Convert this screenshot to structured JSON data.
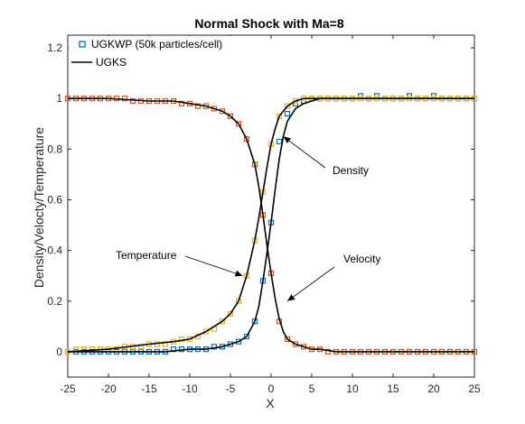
{
  "chart_data": {
    "type": "line",
    "title": "Normal Shock with Ma=8",
    "xlabel": "X",
    "ylabel": "Density/Velocty/Temperature",
    "xlim": [
      -25,
      25
    ],
    "ylim": [
      -0.1,
      1.25
    ],
    "xticks": [
      -25,
      -20,
      -15,
      -10,
      -5,
      0,
      5,
      10,
      15,
      20,
      25
    ],
    "yticks": [
      0,
      0.2,
      0.4,
      0.6,
      0.8,
      1,
      1.2
    ],
    "grid": false,
    "legend_position": "top-left",
    "legend": [
      {
        "label": "UGKWP (50k particles/cell)",
        "marker": "square",
        "color": "#0072bd"
      },
      {
        "label": "UGKS",
        "marker": "line",
        "color": "#000000"
      }
    ],
    "colors": {
      "density": "#0072bd",
      "velocity": "#d95319",
      "temperature": "#edb120",
      "ugks": "#000000"
    },
    "annotations": [
      {
        "text": "Density",
        "arrow_to": [
          1.5,
          0.85
        ]
      },
      {
        "text": "Velocity",
        "arrow_to": [
          2.0,
          0.2
        ]
      },
      {
        "text": "Temperature",
        "arrow_to": [
          -3.5,
          0.3
        ]
      }
    ],
    "series": [
      {
        "name": "Density",
        "kind": "UGKWP",
        "x": [
          -25,
          -24,
          -23,
          -22,
          -21,
          -20,
          -19,
          -18,
          -17,
          -16,
          -15,
          -14,
          -13,
          -12,
          -11,
          -10,
          -9,
          -8,
          -7,
          -6,
          -5,
          -4,
          -3,
          -2,
          -1,
          0,
          1,
          2,
          3,
          4,
          5,
          6,
          7,
          8,
          9,
          10,
          11,
          12,
          13,
          14,
          15,
          16,
          17,
          18,
          19,
          20,
          21,
          22,
          23,
          24,
          25
        ],
        "y": [
          0.0,
          0.0,
          0.0,
          0.0,
          0.0,
          0.0,
          0.0,
          0.0,
          0.0,
          0.0,
          0.0,
          0.0,
          0.0,
          0.01,
          0.01,
          0.01,
          0.01,
          0.01,
          0.02,
          0.02,
          0.03,
          0.04,
          0.06,
          0.12,
          0.28,
          0.51,
          0.83,
          0.94,
          0.98,
          0.99,
          1.0,
          1.0,
          1.0,
          1.0,
          1.0,
          1.0,
          1.01,
          1.0,
          1.01,
          1.0,
          1.0,
          1.0,
          1.01,
          1.0,
          1.0,
          1.01,
          1.0,
          1.0,
          1.0,
          1.0,
          1.0
        ]
      },
      {
        "name": "Velocity",
        "kind": "UGKWP",
        "x": [
          -25,
          -24,
          -23,
          -22,
          -21,
          -20,
          -19,
          -18,
          -17,
          -16,
          -15,
          -14,
          -13,
          -12,
          -11,
          -10,
          -9,
          -8,
          -7,
          -6,
          -5,
          -4,
          -3,
          -2,
          -1,
          0,
          1,
          2,
          3,
          4,
          5,
          6,
          7,
          8,
          9,
          10,
          11,
          12,
          13,
          14,
          15,
          16,
          17,
          18,
          19,
          20,
          21,
          22,
          23,
          24,
          25
        ],
        "y": [
          1.0,
          1.0,
          1.0,
          1.0,
          1.0,
          1.0,
          1.0,
          1.0,
          0.99,
          0.99,
          0.99,
          0.99,
          0.99,
          0.99,
          0.98,
          0.98,
          0.97,
          0.97,
          0.96,
          0.95,
          0.93,
          0.9,
          0.84,
          0.74,
          0.54,
          0.31,
          0.12,
          0.05,
          0.03,
          0.02,
          0.01,
          0.01,
          0.0,
          0.0,
          0.0,
          0.0,
          0.0,
          0.0,
          0.0,
          0.0,
          0.0,
          0.0,
          0.0,
          0.0,
          0.0,
          0.0,
          0.0,
          0.0,
          0.0,
          0.0,
          0.0
        ]
      },
      {
        "name": "Temperature",
        "kind": "UGKWP",
        "x": [
          -25,
          -24,
          -23,
          -22,
          -21,
          -20,
          -19,
          -18,
          -17,
          -16,
          -15,
          -14,
          -13,
          -12,
          -11,
          -10,
          -9,
          -8,
          -7,
          -6,
          -5,
          -4,
          -3,
          -2,
          -1,
          0,
          1,
          2,
          3,
          4,
          5,
          6,
          7,
          8,
          9,
          10,
          11,
          12,
          13,
          14,
          15,
          16,
          17,
          18,
          19,
          20,
          21,
          22,
          23,
          24,
          25
        ],
        "y": [
          0.0,
          0.01,
          0.01,
          0.01,
          0.01,
          0.01,
          0.01,
          0.02,
          0.02,
          0.02,
          0.03,
          0.03,
          0.03,
          0.04,
          0.05,
          0.05,
          0.06,
          0.08,
          0.09,
          0.12,
          0.15,
          0.2,
          0.3,
          0.44,
          0.63,
          0.82,
          0.93,
          0.97,
          0.99,
          1.0,
          1.0,
          1.0,
          1.0,
          1.0,
          1.0,
          1.0,
          1.0,
          1.0,
          1.0,
          1.0,
          1.0,
          1.0,
          1.0,
          1.0,
          1.0,
          1.0,
          1.0,
          1.0,
          1.0,
          1.0,
          1.0
        ]
      },
      {
        "name": "Density",
        "kind": "UGKS",
        "x": [
          -25,
          -22,
          -19,
          -16,
          -13,
          -10,
          -8,
          -6,
          -5,
          -4,
          -3,
          -2,
          -1.5,
          -1,
          -0.5,
          0,
          0.5,
          1,
          1.5,
          2,
          3,
          4,
          5,
          6,
          8,
          10,
          15,
          20,
          25
        ],
        "y": [
          0.0,
          0.0,
          0.0,
          0.0,
          0.0,
          0.01,
          0.01,
          0.02,
          0.03,
          0.04,
          0.06,
          0.12,
          0.18,
          0.28,
          0.39,
          0.51,
          0.64,
          0.76,
          0.85,
          0.91,
          0.96,
          0.98,
          0.99,
          1.0,
          1.0,
          1.0,
          1.0,
          1.0,
          1.0
        ]
      },
      {
        "name": "Velocity",
        "kind": "UGKS",
        "x": [
          -25,
          -20,
          -15,
          -12,
          -10,
          -8,
          -6,
          -5,
          -4,
          -3,
          -2,
          -1.5,
          -1,
          -0.5,
          0,
          0.5,
          1,
          1.5,
          2,
          3,
          4,
          5,
          6,
          8,
          10,
          15,
          20,
          25
        ],
        "y": [
          1.0,
          1.0,
          0.99,
          0.99,
          0.98,
          0.97,
          0.95,
          0.93,
          0.9,
          0.84,
          0.74,
          0.65,
          0.54,
          0.42,
          0.31,
          0.21,
          0.13,
          0.08,
          0.05,
          0.03,
          0.02,
          0.01,
          0.01,
          0.0,
          0.0,
          0.0,
          0.0,
          0.0
        ]
      },
      {
        "name": "Temperature",
        "kind": "UGKS",
        "x": [
          -25,
          -20,
          -15,
          -12,
          -10,
          -8,
          -6,
          -5,
          -4,
          -3,
          -2.5,
          -2,
          -1.5,
          -1,
          -0.5,
          0,
          0.5,
          1,
          1.5,
          2,
          3,
          4,
          5,
          6,
          8,
          10,
          15,
          20,
          25
        ],
        "y": [
          0.0,
          0.01,
          0.03,
          0.04,
          0.05,
          0.08,
          0.12,
          0.15,
          0.2,
          0.3,
          0.37,
          0.44,
          0.53,
          0.63,
          0.73,
          0.82,
          0.88,
          0.93,
          0.95,
          0.97,
          0.99,
          1.0,
          1.0,
          1.0,
          1.0,
          1.0,
          1.0,
          1.0,
          1.0
        ]
      }
    ]
  }
}
